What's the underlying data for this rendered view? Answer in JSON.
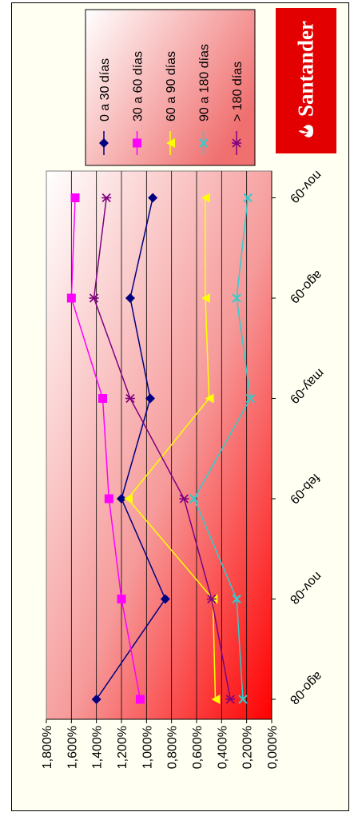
{
  "logo": {
    "text": "Santander",
    "color": "#e20000"
  },
  "chart_data": {
    "type": "line",
    "orientation": "rotated-90-clockwise",
    "categories": [
      "ago-08",
      "nov-08",
      "feb-09",
      "may-09",
      "ago-09",
      "nov-09"
    ],
    "ylim": [
      0,
      1.8
    ],
    "yticks": [
      "1,800%",
      "1,600%",
      "1,400%",
      "1,200%",
      "1,000%",
      "0,800%",
      "0,600%",
      "0,400%",
      "0,200%",
      "0,000%"
    ],
    "grid": true,
    "legend_position": "top",
    "plot_background": "gradient white to red",
    "series": [
      {
        "name": "0 a 30 días",
        "color": "#000080",
        "marker": "diamond",
        "values": [
          1.4,
          0.85,
          1.2,
          0.97,
          1.13,
          0.95
        ]
      },
      {
        "name": "30 a 60 días",
        "color": "#ff00ff",
        "marker": "square",
        "values": [
          1.05,
          1.2,
          1.3,
          1.35,
          1.6,
          1.57
        ]
      },
      {
        "name": "60 a 90 días",
        "color": "#ffff00",
        "marker": "triangle",
        "values": [
          0.45,
          0.47,
          1.15,
          0.5,
          0.53,
          0.53
        ]
      },
      {
        "name": "90 a 180 días",
        "color": "#33cccc",
        "marker": "x",
        "values": [
          0.23,
          0.28,
          0.62,
          0.17,
          0.28,
          0.19
        ]
      },
      {
        "name": "> 180 días",
        "color": "#800080",
        "marker": "star",
        "values": [
          0.33,
          0.48,
          0.7,
          1.13,
          1.42,
          1.32
        ]
      }
    ]
  }
}
